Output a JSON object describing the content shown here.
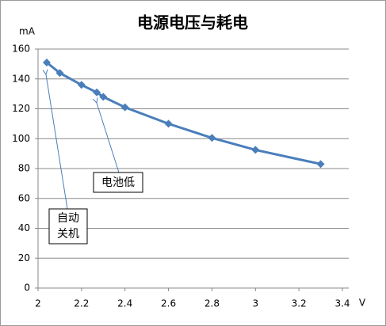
{
  "chart_data": {
    "type": "line",
    "title": "电源电压与耗电",
    "y_label": "mA",
    "x_label": "V",
    "x": [
      2.04,
      2.1,
      2.2,
      2.27,
      2.3,
      2.4,
      2.6,
      2.8,
      3.0,
      3.3
    ],
    "series": [
      {
        "name": "耗电",
        "color": "#4a7ebb",
        "values": [
          151,
          144,
          136,
          131,
          128,
          121,
          110,
          100.5,
          92.5,
          83
        ]
      }
    ],
    "xlim": [
      2,
      3.4
    ],
    "xticks": [
      2,
      2.2,
      2.4,
      2.6,
      2.8,
      3,
      3.2,
      3.4
    ],
    "ylim": [
      0,
      160
    ],
    "yticks": [
      0,
      20,
      40,
      60,
      80,
      100,
      120,
      140,
      160
    ],
    "grid": true,
    "annotations": [
      [
        "电池低"
      ],
      [
        "自动",
        "关机"
      ]
    ]
  }
}
